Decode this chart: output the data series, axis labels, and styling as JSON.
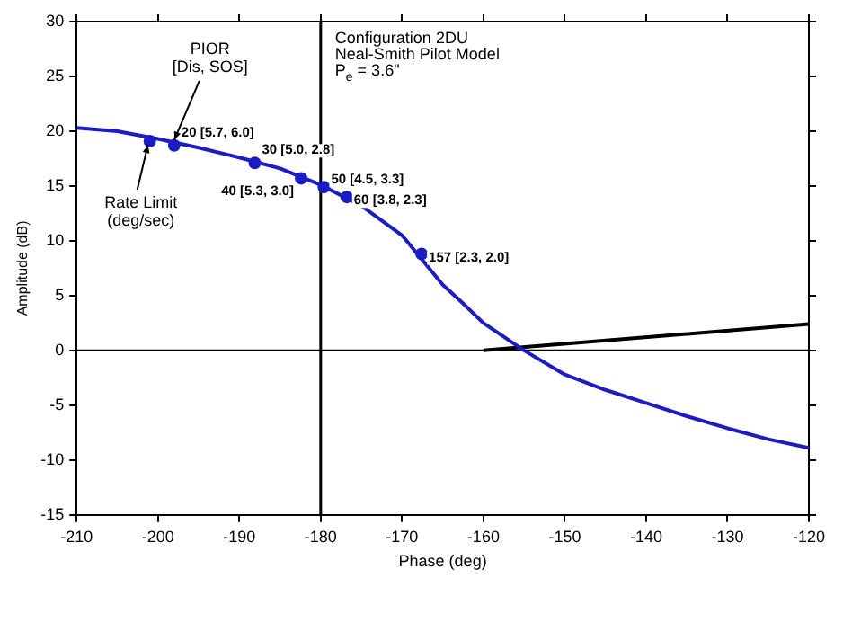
{
  "chart_data": {
    "type": "line",
    "xlabel": "Phase (deg)",
    "ylabel": "Amplitude (dB)",
    "xlim": [
      -210,
      -120
    ],
    "xticks": [
      -210,
      -200,
      -190,
      -180,
      -170,
      -160,
      -150,
      -140,
      -130,
      -120
    ],
    "ylim": [
      -15,
      30
    ],
    "yticks": [
      -15,
      -10,
      -5,
      0,
      5,
      10,
      15,
      20,
      25,
      30
    ],
    "grid": false,
    "legend": false,
    "line_style": "solid",
    "series": [
      {
        "color": "#1c1cc4",
        "marker": "none",
        "x": [
          -210,
          -205,
          -200,
          -195,
          -190,
          -185,
          -180,
          -175,
          -170,
          -165,
          -162.8,
          -160,
          -155,
          -150,
          -145,
          -140,
          -135,
          -130,
          -125,
          -120
        ],
        "values": [
          20.3,
          20.0,
          19.3,
          18.5,
          17.6,
          16.6,
          15.1,
          13.2,
          10.5,
          6.0,
          4.5,
          2.5,
          0.0,
          -2.2,
          -3.6,
          -4.8,
          -6.0,
          -7.1,
          -8.1,
          -8.9
        ]
      },
      {
        "type": "line",
        "color": "#000000",
        "marker": "none",
        "x": [
          -160,
          -120
        ],
        "values": [
          0,
          2.4
        ]
      },
      {
        "type": "scatter",
        "color": "#1c1cc4",
        "marker": "circle",
        "x": [
          -201,
          -198,
          -188.1,
          -182.4,
          -179.6,
          -176.8,
          -167.6
        ],
        "values": [
          19.1,
          18.7,
          17.1,
          15.7,
          14.9,
          14.0,
          8.8
        ]
      }
    ],
    "ref_lines": [
      {
        "axis": "y",
        "value": 0,
        "color": "#000000"
      },
      {
        "axis": "x",
        "value": -180,
        "color": "#000000"
      }
    ],
    "annotations": [
      {
        "text": "20 [5.7, 6.0]",
        "x": -198,
        "y": 18.7
      },
      {
        "text": "30 [5.0, 2.8]",
        "x": -188.1,
        "y": 17.1
      },
      {
        "text": "40 [5.3, 3.0]",
        "x": -182.4,
        "y": 15.7
      },
      {
        "text": "50 [4.5, 3.3]",
        "x": -179.6,
        "y": 14.9
      },
      {
        "text": "60 [3.8, 2.3]",
        "x": -176.8,
        "y": 14.0
      },
      {
        "text": "157 [2.3, 2.0]",
        "x": -167.6,
        "y": 8.8
      },
      {
        "text": "PIOR\n[Dis, SOS]",
        "x": -198,
        "y": 18.7
      },
      {
        "text": "Rate Limit\n(deg/sec)",
        "x": -201,
        "y": 19.1
      },
      "Configuration 2DU",
      "Neal-Smith Pilot Model",
      "P$_{e}$ = 3.6\""
    ]
  }
}
